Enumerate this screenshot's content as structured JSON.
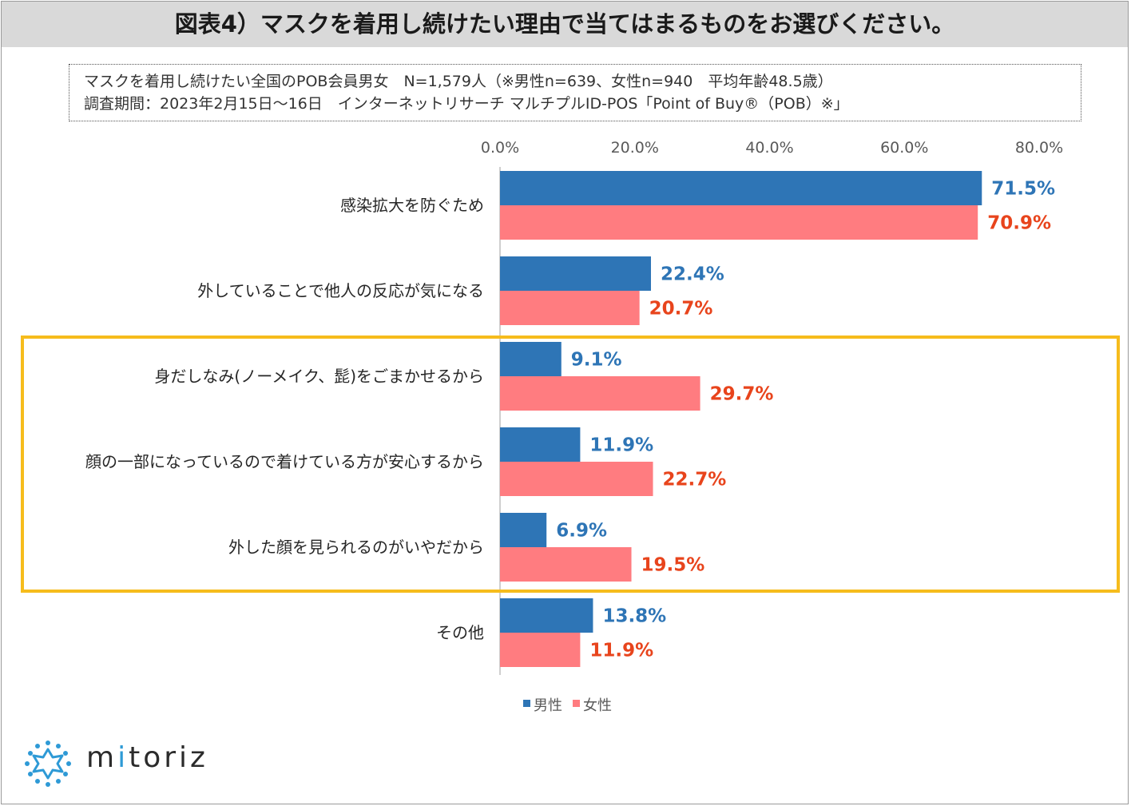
{
  "header": {
    "title": "図表4）マスクを着用し続けたい理由で当てはまるものをお選びください。"
  },
  "note": {
    "line1": "マスクを着用し続けたい全国のPOB会員男女　N=1,579人（※男性n=639、女性n=940　平均年齢48.5歳）",
    "line2": "調査期間：2023年2月15日～16日　インターネットリサーチ マルチプルID-POS「Point of Buy®（POB）※」"
  },
  "chart_data": {
    "type": "bar",
    "orientation": "horizontal",
    "categories": [
      "感染拡大を防ぐため",
      "外していることで他人の反応が気になる",
      "身だしなみ(ノーメイク、髭)をごまかせるから",
      "顔の一部になっているので着けている方が安心するから",
      "外した顔を見られるのがいやだから",
      "その他"
    ],
    "series": [
      {
        "name": "男性",
        "color": "#2e75b6",
        "label_color": "#2e75b6",
        "values": [
          71.5,
          22.4,
          9.1,
          11.9,
          6.9,
          13.8
        ],
        "labels": [
          "71.5%",
          "22.4%",
          "9.1%",
          "11.9%",
          "6.9%",
          "13.8%"
        ]
      },
      {
        "name": "女性",
        "color": "#ff7c80",
        "label_color": "#e8441c",
        "values": [
          70.9,
          20.7,
          29.7,
          22.7,
          19.5,
          11.9
        ],
        "labels": [
          "70.9%",
          "20.7%",
          "29.7%",
          "22.7%",
          "19.5%",
          "11.9%"
        ]
      }
    ],
    "xlim": [
      0,
      80
    ],
    "xticks": [
      "0.0%",
      "20.0%",
      "40.0%",
      "60.0%",
      "80.0%"
    ],
    "xtick_values": [
      0,
      20,
      40,
      60,
      80
    ],
    "grid": false,
    "legend_position": "bottom",
    "highlighted_categories": [
      2,
      3,
      4
    ],
    "highlight_color": "#f6bc1c"
  },
  "logo": {
    "text_before": "m",
    "text_accent": "i",
    "text_after": "toriz",
    "accent_color": "#2e9ad6"
  }
}
